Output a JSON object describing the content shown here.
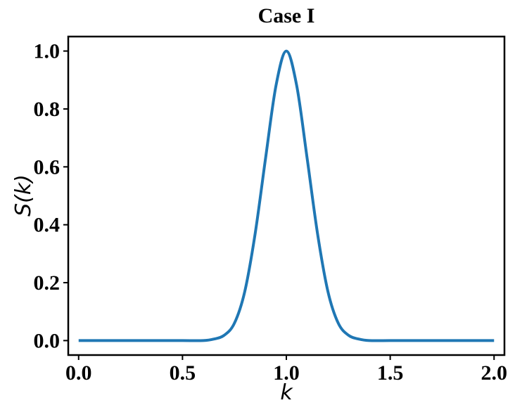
{
  "chart_data": {
    "type": "line",
    "title": "Case I",
    "xlabel": "k",
    "ylabel": "S(k)",
    "xlim": [
      -0.05,
      2.05
    ],
    "ylim": [
      -0.05,
      1.05
    ],
    "xticks": [
      0.0,
      0.5,
      1.0,
      1.5,
      2.0
    ],
    "xtick_labels": [
      "0.0",
      "0.5",
      "1.0",
      "1.5",
      "2.0"
    ],
    "yticks": [
      0.0,
      0.2,
      0.4,
      0.6,
      0.8,
      1.0
    ],
    "ytick_labels": [
      "0.0",
      "0.2",
      "0.4",
      "0.6",
      "0.8",
      "1.0"
    ],
    "grid": false,
    "series": [
      {
        "color": "#1f77b4",
        "x": [
          0.0,
          0.1,
          0.2,
          0.3,
          0.4,
          0.5,
          0.6,
          0.65,
          0.7,
          0.75,
          0.8,
          0.85,
          0.9,
          0.95,
          1.0,
          1.05,
          1.1,
          1.15,
          1.2,
          1.25,
          1.3,
          1.35,
          1.4,
          1.5,
          1.6,
          1.7,
          1.8,
          1.9,
          2.0
        ],
        "y": [
          0.0,
          0.0,
          0.0,
          0.0,
          0.0,
          0.0,
          0.0,
          0.005,
          0.018,
          0.06,
          0.17,
          0.37,
          0.63,
          0.88,
          1.0,
          0.88,
          0.63,
          0.37,
          0.17,
          0.06,
          0.018,
          0.005,
          0.0,
          0.0,
          0.0,
          0.0,
          0.0,
          0.0,
          0.0
        ]
      }
    ]
  }
}
